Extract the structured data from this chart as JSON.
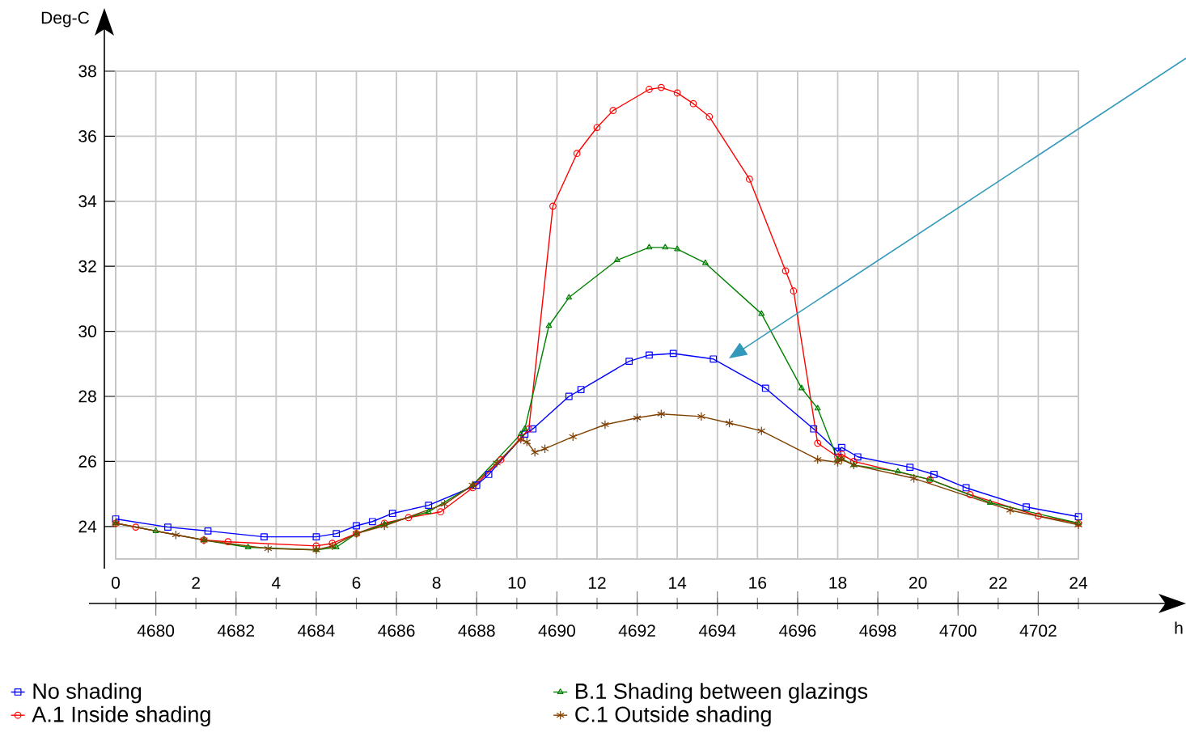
{
  "chart_data": {
    "type": "line",
    "ylabel": "Deg-C",
    "annotations": [
      "h"
    ],
    "xlim": [
      0,
      24
    ],
    "xticks": [
      0,
      {
        "value": 1,
        "label": null
      },
      2,
      {
        "value": 3,
        "label": null
      },
      4,
      {
        "value": 5,
        "label": null
      },
      6,
      {
        "value": 7,
        "label": null
      },
      8,
      {
        "value": 9,
        "label": null
      },
      10,
      {
        "value": 11,
        "label": null
      },
      12,
      {
        "value": 13,
        "label": null
      },
      14,
      {
        "value": 15,
        "label": null
      },
      16,
      {
        "value": 17,
        "label": null
      },
      18,
      {
        "value": 19,
        "label": null
      },
      20,
      {
        "value": 21,
        "label": null
      },
      22,
      {
        "value": 23,
        "label": null
      },
      24
    ],
    "x2lim": [
      4679,
      4703
    ],
    "x2ticks": [
      4680,
      4682,
      4684,
      4686,
      4688,
      4690,
      4692,
      4694,
      4696,
      4698,
      4700,
      4702
    ],
    "ylim": [
      23,
      38
    ],
    "yticks": [
      24,
      26,
      28,
      30,
      32,
      34,
      36,
      38
    ],
    "grid": true,
    "legend": "bottom left",
    "series": [
      {
        "name": "No shading",
        "color": "#0000ff",
        "marker": "square",
        "x": [
          0,
          1.3,
          2.3,
          3.7,
          5,
          5.5,
          6,
          6.4,
          6.9,
          7.8,
          9.0,
          9.3,
          10.2,
          10.4,
          11.3,
          11.6,
          12.8,
          13.3,
          13.9,
          14.9,
          16.2,
          17.4,
          18.0,
          18.1,
          18.5,
          19.8,
          20.4,
          21.2,
          22.7,
          24
        ],
        "values": [
          24.23,
          23.98,
          23.86,
          23.68,
          23.68,
          23.78,
          24.02,
          24.15,
          24.4,
          24.65,
          25.27,
          25.6,
          26.84,
          27.0,
          28.0,
          28.21,
          29.08,
          29.27,
          29.32,
          29.15,
          28.25,
          27.0,
          26.31,
          26.43,
          26.14,
          25.82,
          25.6,
          25.19,
          24.6,
          24.3
        ]
      },
      {
        "name": "A.1 Inside shading",
        "color": "#ff0000",
        "marker": "circle",
        "x": [
          0,
          0.5,
          2.2,
          2.8,
          5,
          5.4,
          6,
          6.7,
          7.3,
          8.1,
          8.9,
          9.6,
          10.1,
          10.3,
          10.9,
          11.5,
          12.0,
          12.4,
          13.3,
          13.6,
          14.0,
          14.4,
          14.8,
          15.8,
          16.7,
          16.9,
          17.5,
          18.0,
          18.1,
          18.4,
          20.3,
          21.3,
          23,
          24
        ],
        "values": [
          24.1,
          23.98,
          23.58,
          23.53,
          23.4,
          23.48,
          23.78,
          24.1,
          24.27,
          24.45,
          25.19,
          26.05,
          26.72,
          27.0,
          33.85,
          35.47,
          36.27,
          36.79,
          37.44,
          37.5,
          37.33,
          37.0,
          36.6,
          34.68,
          31.86,
          31.24,
          26.56,
          26.14,
          26.22,
          26.0,
          25.44,
          24.98,
          24.32,
          24.1
        ]
      },
      {
        "name": "B.1 Shading between glazings",
        "color": "#008000",
        "marker": "triangle",
        "x": [
          0,
          1.0,
          2.2,
          3.3,
          5,
          5.5,
          6,
          6.7,
          7.8,
          8.9,
          10.1,
          10.2,
          10.8,
          11.3,
          12.5,
          13.3,
          13.7,
          14.0,
          14.7,
          16.1,
          17.1,
          17.5,
          18.0,
          18.1,
          18.4,
          19.5,
          20.3,
          21.8,
          24
        ],
        "values": [
          24.1,
          23.86,
          23.58,
          23.36,
          23.28,
          23.36,
          23.78,
          24.07,
          24.45,
          25.27,
          26.84,
          27.0,
          30.17,
          31.04,
          32.19,
          32.58,
          32.58,
          32.53,
          32.1,
          30.54,
          28.25,
          27.63,
          26.06,
          26.08,
          25.89,
          25.69,
          25.44,
          24.73,
          24.1
        ]
      },
      {
        "name": "C.1 Outside shading",
        "color": "#804000",
        "marker": "cross",
        "x": [
          0,
          1.5,
          2.2,
          3.8,
          5,
          5.4,
          6,
          6.7,
          8.2,
          8.9,
          9.5,
          10.1,
          10.25,
          10.45,
          10.7,
          11.4,
          12.2,
          13.0,
          13.6,
          14.6,
          15.3,
          16.1,
          17.5,
          18.0,
          18.1,
          18.4,
          19.9,
          22.3,
          24
        ],
        "values": [
          24.1,
          23.74,
          23.58,
          23.32,
          23.28,
          23.4,
          23.78,
          24.02,
          24.69,
          25.27,
          25.95,
          26.68,
          26.6,
          26.28,
          26.39,
          26.76,
          27.13,
          27.34,
          27.46,
          27.38,
          27.18,
          26.94,
          26.06,
          25.97,
          26.06,
          25.89,
          25.48,
          24.5,
          24.05
        ]
      }
    ]
  }
}
